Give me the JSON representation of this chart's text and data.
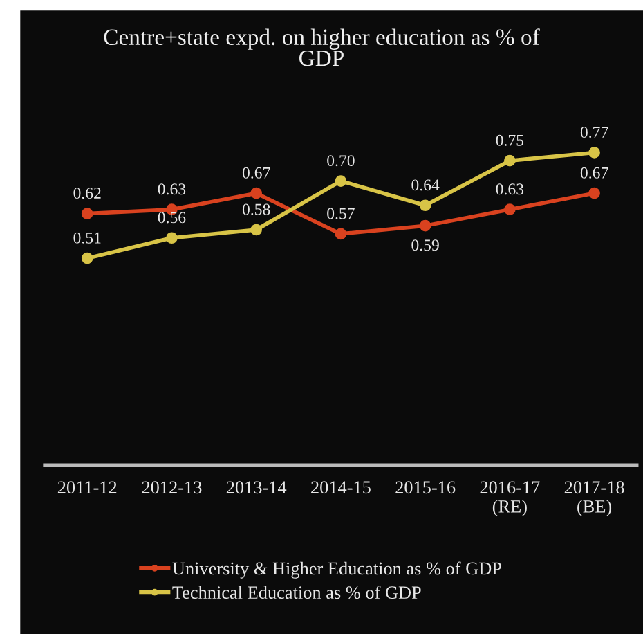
{
  "chart_data": {
    "type": "line",
    "title": "Centre+state expd. on higher education as % of\nGDP",
    "categories": [
      "2011-12",
      "2012-13",
      "2013-14",
      "2014-15",
      "2015-16",
      "2016-17\n(RE)",
      "2017-18\n(BE)"
    ],
    "series": [
      {
        "name": "University & Higher Education as % of GDP",
        "color": "#d9421f",
        "values": [
          0.62,
          0.63,
          0.67,
          0.57,
          0.59,
          0.63,
          0.67
        ],
        "value_labels": [
          "0.62",
          "0.63",
          "0.67",
          "0.57",
          "0.59",
          "0.63",
          "0.67"
        ]
      },
      {
        "name": "Technical Education as % of GDP",
        "color": "#d8c447",
        "values": [
          0.51,
          0.56,
          0.58,
          0.7,
          0.64,
          0.75,
          0.77
        ],
        "value_labels": [
          "0.51",
          "0.56",
          "0.58",
          "0.70",
          "0.64",
          "0.75",
          "0.77"
        ]
      }
    ],
    "tick_labels": "x",
    "legend": "bottom",
    "marker": "circle",
    "line_style": "solid"
  }
}
